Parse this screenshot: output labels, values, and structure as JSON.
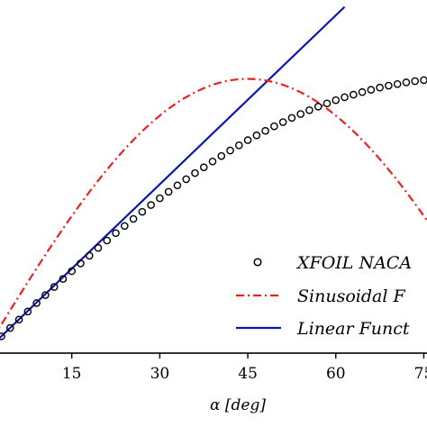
{
  "chart_data": {
    "type": "line",
    "xlabel": "α [deg]",
    "x_ticks": [
      15,
      30,
      45,
      60,
      75
    ],
    "x_tick_labels": [
      "15",
      "30",
      "45",
      "60",
      "75"
    ],
    "xlim": [
      0,
      78
    ],
    "ylim": [
      0,
      1.1
    ],
    "grid": false,
    "legend_position": "lower-right",
    "series": [
      {
        "name": "XFOIL NACA",
        "style": "circles",
        "color": "#000000",
        "x": [
          0,
          1.5,
          3,
          4.5,
          6,
          7.5,
          9,
          10.5,
          12,
          13.5,
          15,
          16.5,
          18,
          19.5,
          21,
          22.5,
          24,
          25.5,
          27,
          28.5,
          30,
          31.5,
          33,
          34.5,
          36,
          37.5,
          39,
          40.5,
          42,
          43.5,
          45,
          46.5,
          48,
          49.5,
          51,
          52.5,
          54,
          55.5,
          57,
          58.5,
          60,
          61.5,
          63,
          64.5,
          66,
          67.5,
          69,
          70.5,
          72,
          73.5,
          75,
          76.5
        ],
        "y": [
          0.0,
          0.026,
          0.052,
          0.078,
          0.104,
          0.129,
          0.155,
          0.18,
          0.205,
          0.23,
          0.254,
          0.278,
          0.302,
          0.326,
          0.349,
          0.372,
          0.394,
          0.416,
          0.438,
          0.459,
          0.48,
          0.5,
          0.52,
          0.539,
          0.558,
          0.576,
          0.594,
          0.611,
          0.628,
          0.644,
          0.66,
          0.675,
          0.689,
          0.703,
          0.716,
          0.729,
          0.741,
          0.753,
          0.764,
          0.774,
          0.784,
          0.793,
          0.801,
          0.809,
          0.816,
          0.823,
          0.829,
          0.834,
          0.839,
          0.843,
          0.846,
          0.849
        ]
      },
      {
        "name": "Sinusoidal F",
        "style": "dashdot",
        "color": "#e8231b",
        "amplitude": 0.85
      },
      {
        "name": "Linear Funct",
        "style": "solid",
        "color": "#0a14b4",
        "slope_per_deg": 0.01745,
        "x_range": [
          0,
          61.5
        ]
      }
    ]
  }
}
